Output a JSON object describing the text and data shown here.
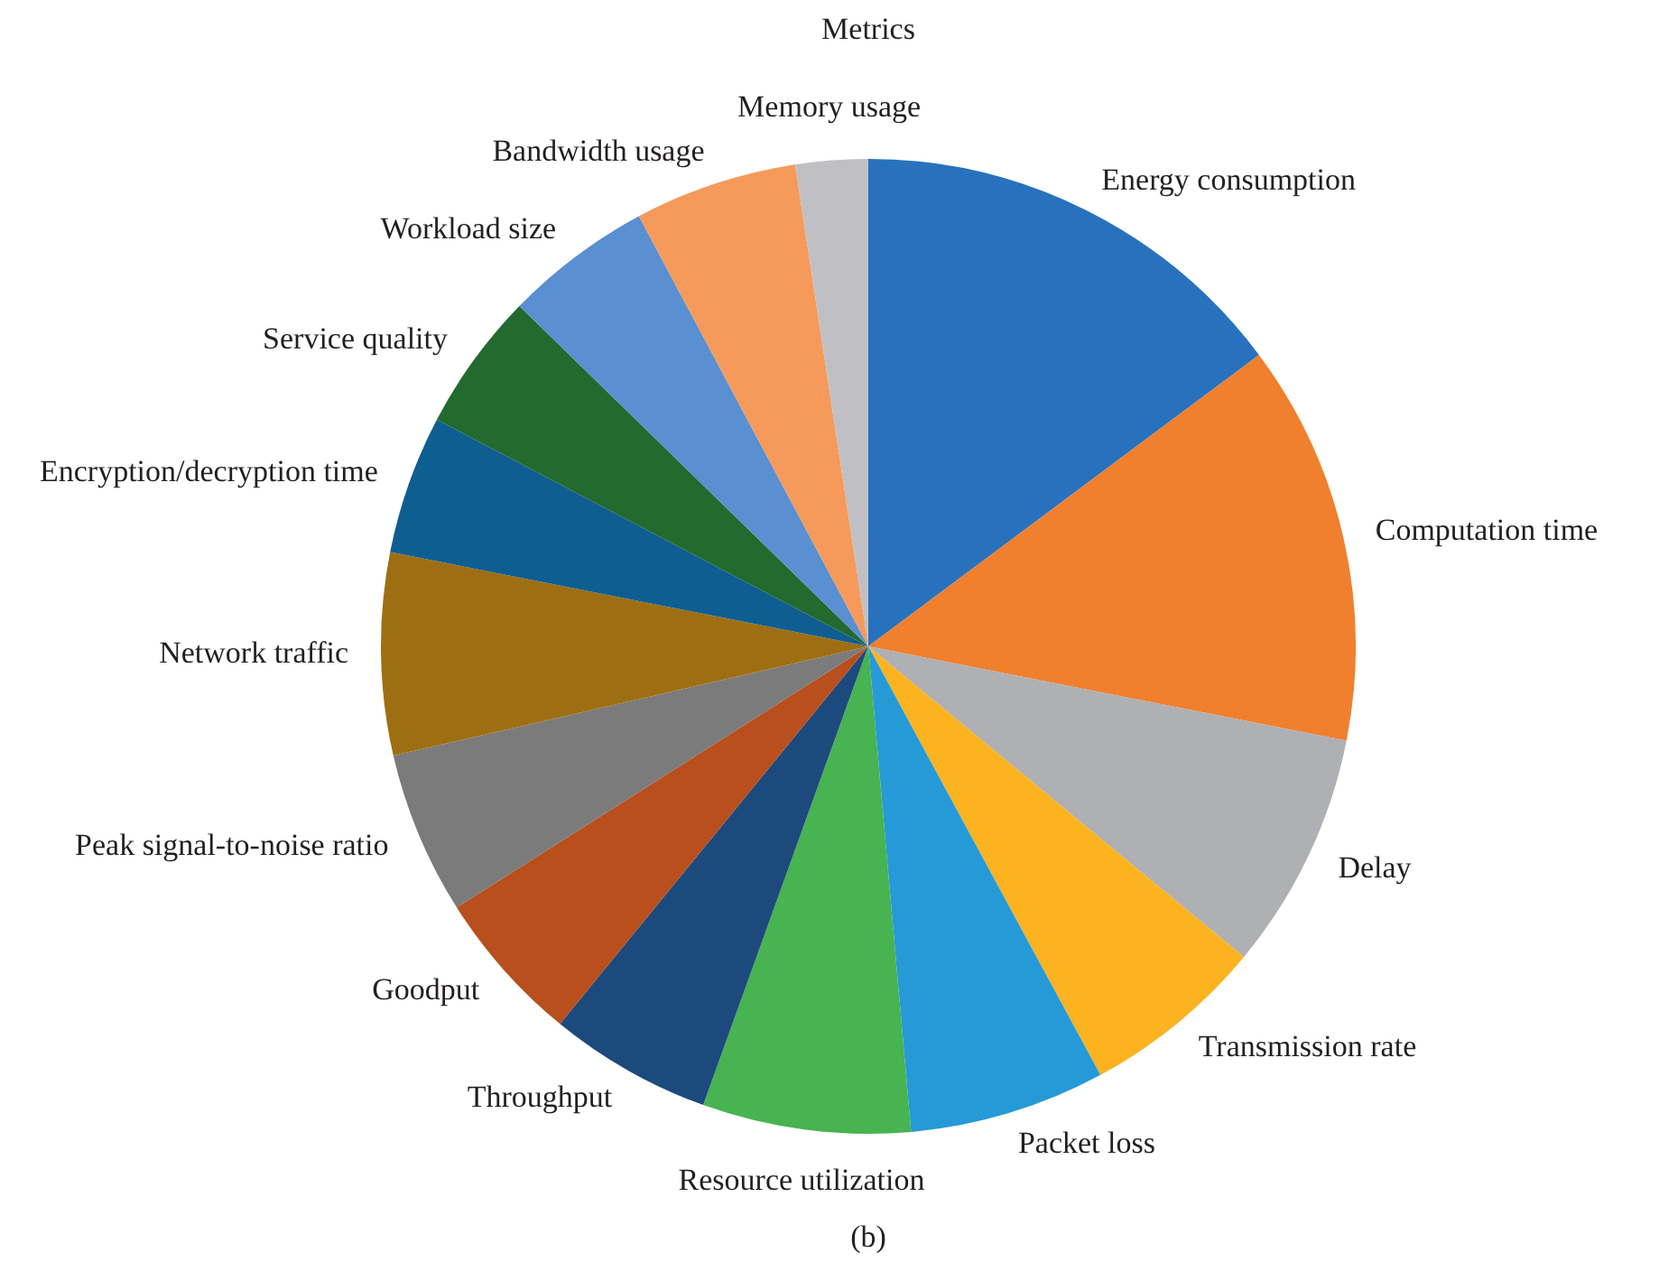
{
  "chart_data": {
    "type": "pie",
    "title": "Metrics",
    "categories": [
      "Energy consumption",
      "Computation time",
      "Delay",
      "Transmission rate",
      "Packet loss",
      "Resource utilization",
      "Throughput",
      "Goodput",
      "Peak signal-to-noise ratio",
      "Network traffic",
      "Encryption/decryption time",
      "Service quality",
      "Workload size",
      "Bandwidth usage",
      "Memory usage"
    ],
    "values": [
      14.8,
      13.3,
      7.9,
      6.1,
      6.5,
      6.9,
      5.4,
      5.1,
      5.4,
      6.7,
      4.6,
      4.6,
      4.9,
      5.4,
      2.4
    ],
    "colors": [
      "#2872bd",
      "#f07f2e",
      "#afb0b3",
      "#fbb320",
      "#269ad7",
      "#47b351",
      "#1d4a7c",
      "#b94f1c",
      "#7b7b7b",
      "#9e6f12",
      "#0f5e91",
      "#236a2f",
      "#5a8fd1",
      "#f59a5b",
      "#c0c0c4"
    ],
    "legend": false,
    "annotations": [
      "(b)"
    ]
  }
}
